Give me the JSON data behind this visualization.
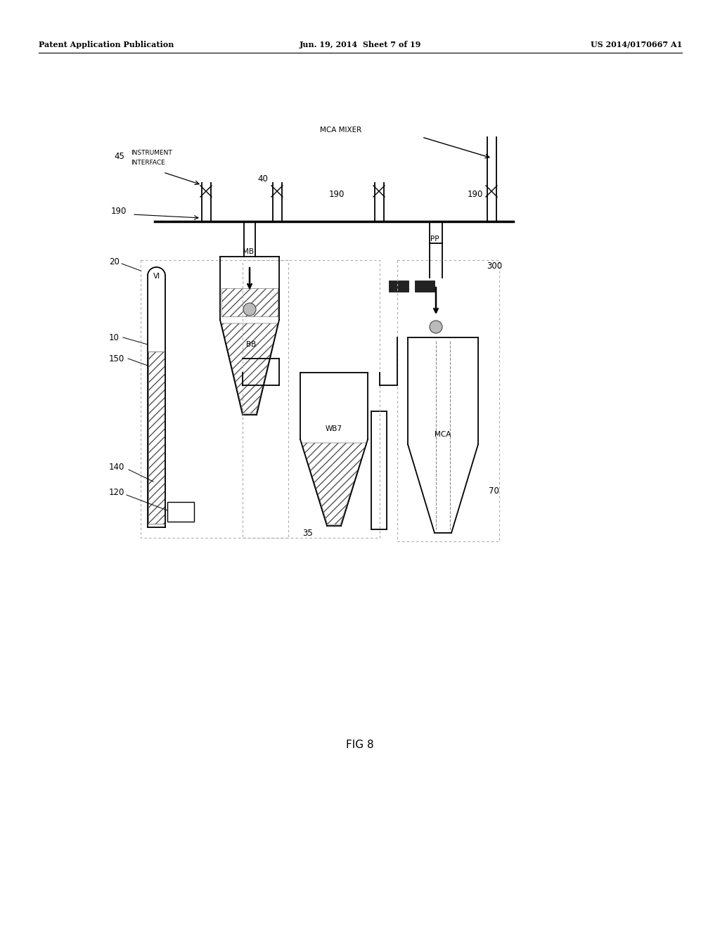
{
  "title_left": "Patent Application Publication",
  "title_mid": "Jun. 19, 2014  Sheet 7 of 19",
  "title_right": "US 2014/0170667 A1",
  "fig_label": "FIG 8",
  "bg_color": "#ffffff",
  "line_color": "#000000"
}
